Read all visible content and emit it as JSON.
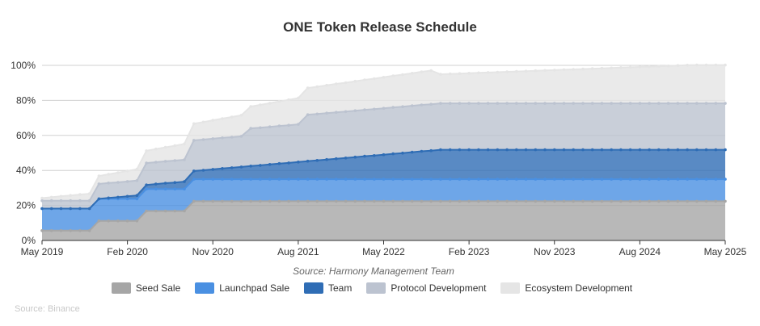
{
  "chart_data": {
    "type": "area",
    "stacked": true,
    "title": "ONE Token Release Schedule",
    "source_note": "Source: Harmony Management Team",
    "footer": "Source: Binance",
    "xlabel": "",
    "ylabel": "",
    "ylim": [
      0,
      100
    ],
    "y_ticks": [
      "0%",
      "20%",
      "40%",
      "60%",
      "80%",
      "100%"
    ],
    "x_ticks": [
      "May 2019",
      "Feb 2020",
      "Nov 2020",
      "Aug 2021",
      "May 2022",
      "Feb 2023",
      "Nov 2023",
      "Aug 2024",
      "May 2025"
    ],
    "x": [
      "2019-05",
      "2019-06",
      "2019-07",
      "2019-08",
      "2019-09",
      "2019-10",
      "2019-11",
      "2019-12",
      "2020-01",
      "2020-02",
      "2020-03",
      "2020-04",
      "2020-05",
      "2020-06",
      "2020-07",
      "2020-08",
      "2020-09",
      "2020-10",
      "2020-11",
      "2020-12",
      "2021-01",
      "2021-02",
      "2021-03",
      "2021-04",
      "2021-05",
      "2021-06",
      "2021-07",
      "2021-08",
      "2021-09",
      "2021-10",
      "2021-11",
      "2021-12",
      "2022-01",
      "2022-02",
      "2022-03",
      "2022-04",
      "2022-05",
      "2022-06",
      "2022-07",
      "2022-08",
      "2022-09",
      "2022-10",
      "2022-11",
      "2022-12",
      "2023-01",
      "2023-02",
      "2023-03",
      "2023-04",
      "2023-05",
      "2023-06",
      "2023-07",
      "2023-08",
      "2023-09",
      "2023-10",
      "2023-11",
      "2023-12",
      "2024-01",
      "2024-02",
      "2024-03",
      "2024-04",
      "2024-05",
      "2024-06",
      "2024-07",
      "2024-08",
      "2024-09",
      "2024-10",
      "2024-11",
      "2024-12",
      "2025-01",
      "2025-02",
      "2025-03",
      "2025-04",
      "2025-05"
    ],
    "grid": true,
    "legend_position": "bottom",
    "series": [
      {
        "name": "Seed Sale",
        "color": "#a6a6a6",
        "values": [
          5.6,
          5.6,
          5.6,
          5.6,
          5.6,
          5.6,
          11.2,
          11.2,
          11.2,
          11.2,
          11.2,
          16.8,
          16.8,
          16.8,
          16.8,
          16.8,
          22.4,
          22.4,
          22.4,
          22.4,
          22.4,
          22.4,
          22.4,
          22.4,
          22.4,
          22.4,
          22.4,
          22.4,
          22.4,
          22.4,
          22.4,
          22.4,
          22.4,
          22.4,
          22.4,
          22.4,
          22.4,
          22.4,
          22.4,
          22.4,
          22.4,
          22.4,
          22.4,
          22.4,
          22.4,
          22.4,
          22.4,
          22.4,
          22.4,
          22.4,
          22.4,
          22.4,
          22.4,
          22.4,
          22.4,
          22.4,
          22.4,
          22.4,
          22.4,
          22.4,
          22.4,
          22.4,
          22.4,
          22.4,
          22.4,
          22.4,
          22.4,
          22.4,
          22.4,
          22.4,
          22.4,
          22.4,
          22.4
        ]
      },
      {
        "name": "Launchpad Sale",
        "color": "#4a90e2",
        "values": [
          12.6,
          12.6,
          12.6,
          12.6,
          12.6,
          12.6,
          12.6,
          12.6,
          12.6,
          12.6,
          12.6,
          12.6,
          12.6,
          12.6,
          12.6,
          12.6,
          12.6,
          12.6,
          12.6,
          12.6,
          12.6,
          12.6,
          12.6,
          12.6,
          12.6,
          12.6,
          12.6,
          12.6,
          12.6,
          12.6,
          12.6,
          12.6,
          12.6,
          12.6,
          12.6,
          12.6,
          12.6,
          12.6,
          12.6,
          12.6,
          12.6,
          12.6,
          12.6,
          12.6,
          12.6,
          12.6,
          12.6,
          12.6,
          12.6,
          12.6,
          12.6,
          12.6,
          12.6,
          12.6,
          12.6,
          12.6,
          12.6,
          12.6,
          12.6,
          12.6,
          12.6,
          12.6,
          12.6,
          12.6,
          12.6,
          12.6,
          12.6,
          12.6,
          12.6,
          12.6,
          12.6,
          12.6,
          12.6
        ]
      },
      {
        "name": "Team",
        "color": "#2f6db5",
        "values": [
          0,
          0,
          0,
          0,
          0,
          0,
          0,
          0.5,
          0.9,
          1.4,
          1.9,
          2.3,
          2.8,
          3.3,
          3.7,
          4.2,
          4.7,
          5.1,
          5.6,
          6.1,
          6.5,
          7.0,
          7.5,
          7.9,
          8.4,
          8.9,
          9.3,
          9.8,
          10.3,
          10.7,
          11.2,
          11.7,
          12.1,
          12.6,
          13.1,
          13.5,
          14.0,
          14.5,
          14.9,
          15.4,
          15.9,
          16.3,
          16.8,
          16.8,
          16.8,
          16.8,
          16.8,
          16.8,
          16.8,
          16.8,
          16.8,
          16.8,
          16.8,
          16.8,
          16.8,
          16.8,
          16.8,
          16.8,
          16.8,
          16.8,
          16.8,
          16.8,
          16.8,
          16.8,
          16.8,
          16.8,
          16.8,
          16.8,
          16.8,
          16.8,
          16.8,
          16.8,
          16.8
        ]
      },
      {
        "name": "Protocol Development",
        "color": "#bcc3d0",
        "values": [
          4.5,
          4.5,
          4.5,
          4.5,
          4.5,
          4.5,
          8.5,
          8.5,
          8.5,
          8.5,
          8.5,
          12.5,
          12.5,
          12.5,
          12.5,
          12.5,
          17.5,
          17.5,
          17.5,
          17.5,
          17.5,
          17.5,
          21.5,
          21.5,
          21.5,
          21.5,
          21.5,
          21.5,
          26.5,
          26.5,
          26.5,
          26.5,
          26.5,
          26.5,
          26.5,
          26.5,
          26.5,
          26.5,
          26.5,
          26.5,
          26.5,
          26.5,
          26.5,
          26.5,
          26.5,
          26.5,
          26.5,
          26.5,
          26.5,
          26.5,
          26.5,
          26.5,
          26.5,
          26.5,
          26.5,
          26.5,
          26.5,
          26.5,
          26.5,
          26.5,
          26.5,
          26.5,
          26.5,
          26.5,
          26.5,
          26.5,
          26.5,
          26.5,
          26.5,
          26.5,
          26.5,
          26.5,
          26.5
        ]
      },
      {
        "name": "Ecosystem Development",
        "color": "#e5e5e5",
        "values": [
          1.5,
          2.0,
          2.5,
          3.0,
          3.5,
          4.0,
          4.5,
          5.0,
          5.5,
          6.0,
          6.5,
          7.0,
          7.5,
          8.0,
          8.5,
          9.0,
          9.5,
          10.0,
          10.5,
          11.0,
          11.5,
          12.0,
          12.5,
          13.0,
          13.5,
          14.0,
          14.5,
          15.0,
          15.3,
          15.6,
          15.9,
          16.2,
          16.5,
          16.8,
          17.1,
          17.4,
          17.7,
          18.0,
          18.3,
          18.6,
          18.9,
          19.2,
          16.6,
          16.8,
          17.0,
          17.2,
          17.4,
          17.6,
          17.8,
          18.0,
          18.2,
          18.4,
          18.6,
          18.8,
          19.0,
          19.2,
          19.4,
          19.6,
          19.8,
          20.0,
          20.2,
          20.4,
          20.6,
          20.8,
          21.0,
          21.2,
          21.4,
          21.6,
          21.8,
          21.9,
          21.9,
          21.9,
          21.9
        ]
      }
    ]
  }
}
